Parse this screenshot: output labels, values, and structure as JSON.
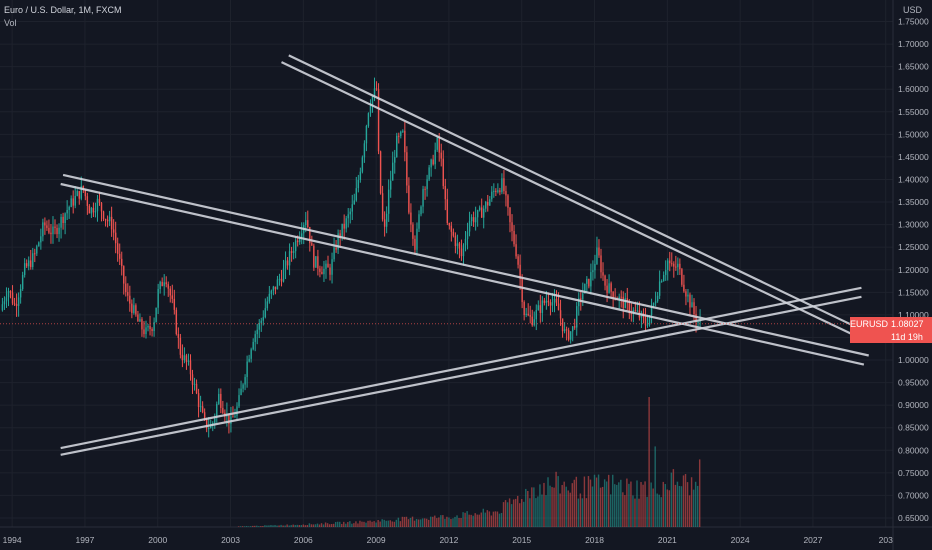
{
  "header": {
    "symbol_title": "Euro / U.S. Dollar, 1M, FXCM",
    "indicator": "Vol",
    "axis_unit": "USD"
  },
  "price_badge": {
    "symbol": "EURUSD",
    "price": "1.08027",
    "countdown": "11d 19h"
  },
  "colors": {
    "background": "#131722",
    "grid": "#1e222d",
    "up": "#26a69a",
    "down": "#ef5350",
    "trendline": "#d1d4dc",
    "text": "#b2b5be"
  },
  "chart_data": {
    "type": "candlestick",
    "y_ticks": [
      "1.75000",
      "1.70000",
      "1.65000",
      "1.60000",
      "1.55000",
      "1.50000",
      "1.45000",
      "1.40000",
      "1.35000",
      "1.30000",
      "1.25000",
      "1.20000",
      "1.15000",
      "1.10000",
      "1.05000",
      "1.00000",
      "0.95000",
      "0.90000",
      "0.85000",
      "0.80000",
      "0.75000",
      "0.70000",
      "0.65000"
    ],
    "x_ticks": [
      "1994",
      "1997",
      "2000",
      "2003",
      "2006",
      "2009",
      "2012",
      "2015",
      "2018",
      "2021",
      "2024",
      "2027",
      "203"
    ],
    "ylim": [
      0.625,
      1.77
    ],
    "xlim": [
      1993.5,
      2030.3
    ],
    "current_price": 1.08027,
    "price_path": [
      [
        1993.6,
        1.11
      ],
      [
        1993.9,
        1.16
      ],
      [
        1994.2,
        1.12
      ],
      [
        1994.6,
        1.2
      ],
      [
        1995.0,
        1.23
      ],
      [
        1995.4,
        1.3
      ],
      [
        1995.8,
        1.28
      ],
      [
        1996.3,
        1.33
      ],
      [
        1996.7,
        1.36
      ],
      [
        1997.0,
        1.38
      ],
      [
        1997.3,
        1.33
      ],
      [
        1997.6,
        1.35
      ],
      [
        1998.0,
        1.31
      ],
      [
        1998.2,
        1.3
      ],
      [
        1998.5,
        1.22
      ],
      [
        1998.8,
        1.14
      ],
      [
        1999.0,
        1.12
      ],
      [
        1999.3,
        1.08
      ],
      [
        1999.6,
        1.06
      ],
      [
        1999.9,
        1.08
      ],
      [
        2000.1,
        1.15
      ],
      [
        2000.4,
        1.19
      ],
      [
        2000.7,
        1.12
      ],
      [
        2001.0,
        1.02
      ],
      [
        2001.4,
        0.98
      ],
      [
        2001.7,
        0.92
      ],
      [
        2002.0,
        0.86
      ],
      [
        2002.3,
        0.85
      ],
      [
        2002.6,
        0.92
      ],
      [
        2002.9,
        0.88
      ],
      [
        2003.1,
        0.86
      ],
      [
        2003.4,
        0.9
      ],
      [
        2003.7,
        0.98
      ],
      [
        2004.0,
        1.05
      ],
      [
        2004.3,
        1.08
      ],
      [
        2004.6,
        1.13
      ],
      [
        2004.9,
        1.16
      ],
      [
        2005.3,
        1.2
      ],
      [
        2005.6,
        1.24
      ],
      [
        2005.9,
        1.28
      ],
      [
        2006.2,
        1.32
      ],
      [
        2006.5,
        1.22
      ],
      [
        2006.9,
        1.2
      ],
      [
        2007.2,
        1.2
      ],
      [
        2007.5,
        1.27
      ],
      [
        2007.8,
        1.3
      ],
      [
        2008.2,
        1.35
      ],
      [
        2008.5,
        1.45
      ],
      [
        2008.8,
        1.57
      ],
      [
        2009.1,
        1.6
      ],
      [
        2009.2,
        1.42
      ],
      [
        2009.4,
        1.27
      ],
      [
        2009.6,
        1.37
      ],
      [
        2009.9,
        1.48
      ],
      [
        2010.2,
        1.5
      ],
      [
        2010.4,
        1.35
      ],
      [
        2010.7,
        1.25
      ],
      [
        2011.0,
        1.38
      ],
      [
        2011.3,
        1.42
      ],
      [
        2011.6,
        1.48
      ],
      [
        2011.8,
        1.43
      ],
      [
        2012.0,
        1.3
      ],
      [
        2012.3,
        1.27
      ],
      [
        2012.6,
        1.23
      ],
      [
        2012.9,
        1.31
      ],
      [
        2013.3,
        1.32
      ],
      [
        2013.7,
        1.35
      ],
      [
        2014.0,
        1.38
      ],
      [
        2014.3,
        1.39
      ],
      [
        2014.6,
        1.3
      ],
      [
        2014.9,
        1.23
      ],
      [
        2015.2,
        1.1
      ],
      [
        2015.5,
        1.09
      ],
      [
        2015.9,
        1.12
      ],
      [
        2016.2,
        1.14
      ],
      [
        2016.6,
        1.11
      ],
      [
        2016.9,
        1.05
      ],
      [
        2017.2,
        1.07
      ],
      [
        2017.5,
        1.14
      ],
      [
        2017.9,
        1.18
      ],
      [
        2018.2,
        1.24
      ],
      [
        2018.5,
        1.17
      ],
      [
        2018.8,
        1.15
      ],
      [
        2019.2,
        1.13
      ],
      [
        2019.6,
        1.11
      ],
      [
        2019.9,
        1.1
      ],
      [
        2020.2,
        1.08
      ],
      [
        2020.5,
        1.12
      ],
      [
        2020.8,
        1.18
      ],
      [
        2021.1,
        1.22
      ],
      [
        2021.3,
        1.2
      ],
      [
        2021.5,
        1.21
      ],
      [
        2021.8,
        1.16
      ],
      [
        2022.0,
        1.13
      ],
      [
        2022.2,
        1.1
      ],
      [
        2022.4,
        1.08027
      ]
    ],
    "volume_profile": [
      [
        2003.0,
        0.002
      ],
      [
        2006.0,
        0.02
      ],
      [
        2008.5,
        0.04
      ],
      [
        2010.0,
        0.06
      ],
      [
        2012.0,
        0.08
      ],
      [
        2014.0,
        0.12
      ],
      [
        2015.5,
        0.3
      ],
      [
        2016.5,
        0.33
      ],
      [
        2017.5,
        0.3
      ],
      [
        2018.5,
        0.33
      ],
      [
        2019.5,
        0.3
      ],
      [
        2020.5,
        0.3
      ],
      [
        2021.3,
        0.36
      ],
      [
        2022.3,
        0.3
      ]
    ],
    "volume_spikes": [
      [
        2020.25,
        1.0
      ],
      [
        2020.5,
        0.62
      ],
      [
        2022.33,
        0.52
      ]
    ],
    "trendlines": [
      {
        "name": "descending-outer-upper",
        "from": [
          2005.4,
          1.675
        ],
        "to": [
          2029.1,
          1.065
        ]
      },
      {
        "name": "descending-outer-lower",
        "from": [
          2005.1,
          1.66
        ],
        "to": [
          2028.9,
          1.05
        ]
      },
      {
        "name": "descending-inner-upper",
        "from": [
          1996.1,
          1.41
        ],
        "to": [
          2029.3,
          1.01
        ]
      },
      {
        "name": "descending-inner-lower",
        "from": [
          1996.0,
          1.39
        ],
        "to": [
          2029.1,
          0.99
        ]
      },
      {
        "name": "ascending-upper",
        "from": [
          1996.0,
          0.805
        ],
        "to": [
          2029.0,
          1.16
        ]
      },
      {
        "name": "ascending-lower",
        "from": [
          1996.0,
          0.79
        ],
        "to": [
          2029.0,
          1.14
        ]
      }
    ]
  }
}
